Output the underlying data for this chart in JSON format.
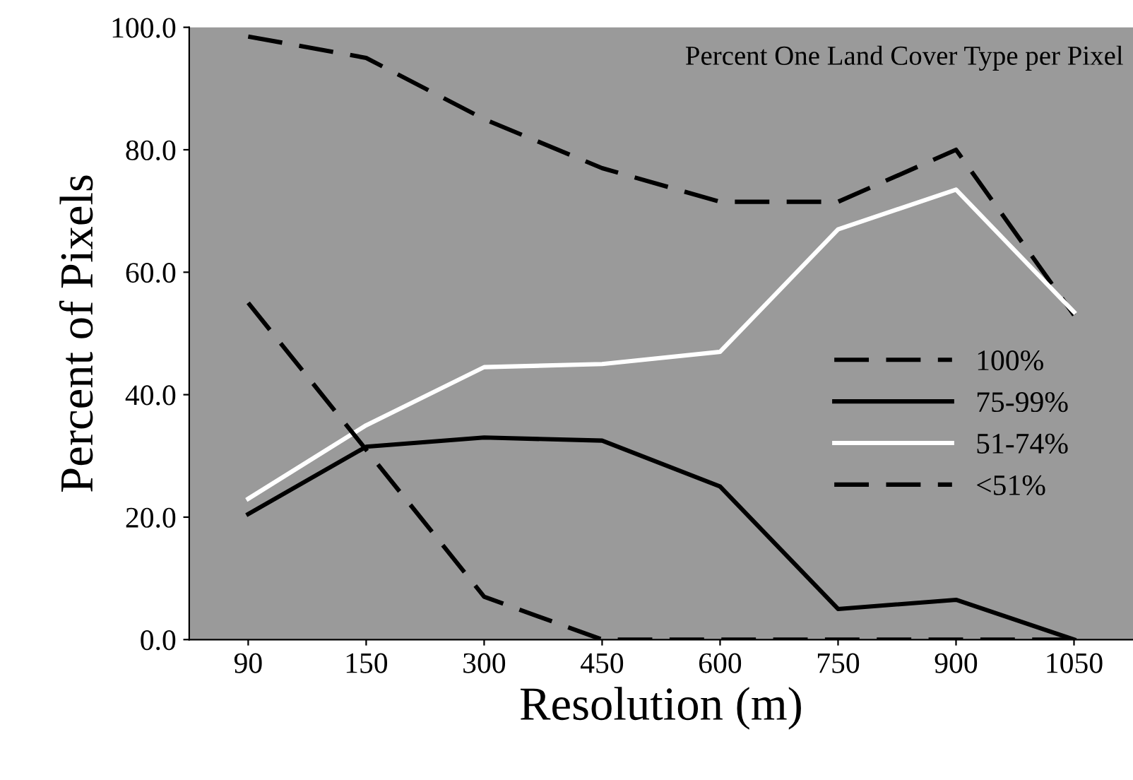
{
  "chart_data": {
    "type": "line",
    "title": "Percent One Land Cover Type per Pixel",
    "xlabel": "Resolution (m)",
    "ylabel": "Percent of Pixels",
    "categories": [
      "90",
      "150",
      "300",
      "450",
      "600",
      "750",
      "900",
      "1050"
    ],
    "series": [
      {
        "name": "100%",
        "color": "#000000",
        "line_style": "dashed",
        "values": [
          98.5,
          95,
          85,
          77,
          71.5,
          71.5,
          80,
          53
        ]
      },
      {
        "name": "75-99%",
        "color": "#000000",
        "line_style": "solid",
        "values": [
          20.5,
          31.5,
          33,
          32.5,
          25,
          5,
          6.5,
          0
        ]
      },
      {
        "name": "51-74%",
        "color": "#ffffff",
        "line_style": "solid",
        "values": [
          23,
          35,
          44.5,
          45,
          47,
          67,
          73.5,
          53.5
        ]
      },
      {
        "name": "<51%",
        "color": "#000000",
        "line_style": "dashed",
        "values": [
          55,
          31,
          7,
          0,
          0,
          0,
          0,
          0
        ]
      }
    ],
    "ylim": [
      0,
      100
    ],
    "yticks": [
      {
        "value": 0,
        "label": "0.0"
      },
      {
        "value": 20,
        "label": "20.0"
      },
      {
        "value": 40,
        "label": "40.0"
      },
      {
        "value": 60,
        "label": "60.0"
      },
      {
        "value": 80,
        "label": "80.0"
      },
      {
        "value": 100,
        "label": "100.0"
      }
    ],
    "grid": false,
    "legend": "right",
    "marker": "none"
  }
}
